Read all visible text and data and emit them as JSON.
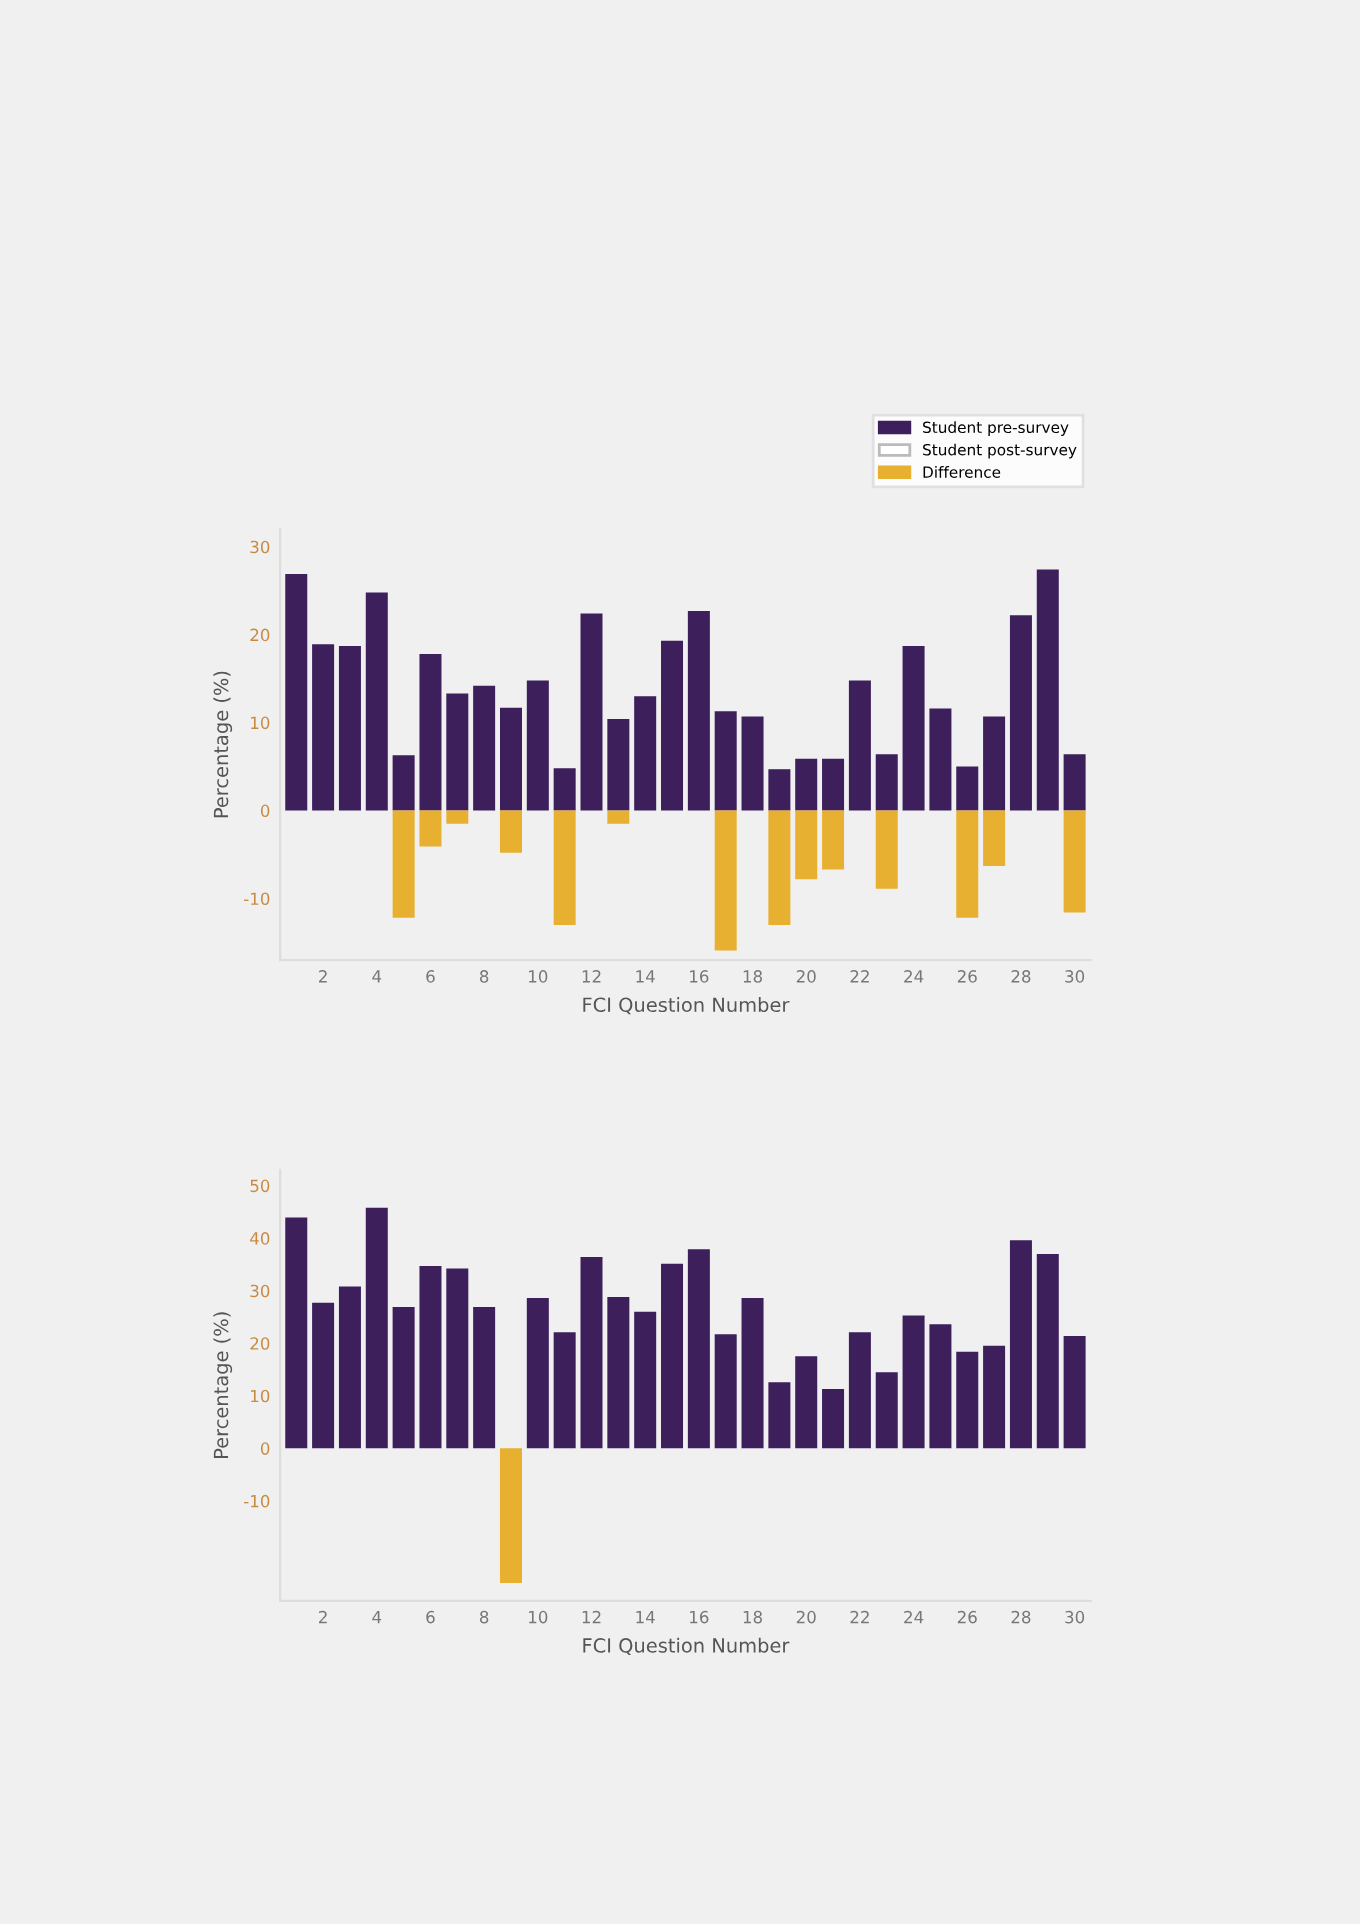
{
  "chart_data": [
    {
      "type": "bar",
      "xlabel": "FCI Question Number",
      "ylabel": "Percentage (%)",
      "categories": [
        null,
        "2",
        null,
        "4",
        null,
        "6",
        null,
        "8",
        null,
        "10",
        null,
        "12",
        null,
        "14",
        null,
        "16",
        null,
        "18",
        null,
        "20",
        null,
        "22",
        null,
        "24",
        null,
        "26",
        null,
        "28",
        null,
        "30"
      ],
      "series": [
        {
          "name": "Student pre-survey",
          "color": "#3d1f5c",
          "values": [
            26.9,
            18.9,
            18.7,
            24.8,
            6.3,
            17.8,
            13.3,
            14.2,
            11.7,
            14.8,
            4.8,
            22.4,
            10.4,
            13.0,
            19.3,
            22.7,
            11.3,
            10.7,
            4.7,
            5.9,
            5.9,
            14.8,
            6.4,
            18.7,
            11.6,
            5.0,
            10.7,
            22.2,
            27.4,
            6.4
          ]
        },
        {
          "name": "Student post-survey",
          "color": "#ffffff",
          "values": [
            null,
            null,
            null,
            null,
            null,
            null,
            null,
            null,
            null,
            null,
            null,
            null,
            null,
            null,
            null,
            null,
            null,
            null,
            null,
            null,
            null,
            null,
            null,
            null,
            null,
            null,
            null,
            null,
            null,
            null
          ]
        },
        {
          "name": "Difference",
          "color": "#e8b030",
          "values": [
            null,
            null,
            null,
            null,
            -12.2,
            -4.1,
            -1.5,
            null,
            -4.8,
            null,
            -13.0,
            null,
            -1.5,
            null,
            null,
            null,
            -15.9,
            null,
            -13.0,
            -7.8,
            -6.7,
            null,
            -8.9,
            null,
            null,
            -12.2,
            -6.3,
            null,
            null,
            -11.6
          ]
        }
      ],
      "ylim": [
        -17,
        32
      ],
      "yticks": [
        -10,
        0,
        10,
        20,
        30
      ],
      "legend": "top right",
      "grid": false
    },
    {
      "type": "bar",
      "xlabel": "FCI Question Number",
      "ylabel": "Percentage (%)",
      "categories": [
        null,
        "2",
        null,
        "4",
        null,
        "6",
        null,
        "8",
        null,
        "10",
        null,
        "12",
        null,
        "14",
        null,
        "16",
        null,
        "18",
        null,
        "20",
        null,
        "22",
        null,
        "24",
        null,
        "26",
        null,
        "28",
        null,
        "30"
      ],
      "series": [
        {
          "color": "#3d1f5c",
          "values": [
            43.9,
            27.7,
            30.8,
            45.8,
            26.9,
            34.7,
            34.2,
            26.9,
            null,
            28.6,
            22.1,
            36.4,
            28.8,
            26.0,
            35.1,
            37.9,
            21.7,
            28.6,
            12.6,
            17.5,
            11.3,
            22.1,
            14.5,
            25.3,
            23.6,
            18.4,
            19.5,
            39.6,
            37.0,
            21.4
          ]
        },
        {
          "color": "#e8b030",
          "values": [
            null,
            null,
            null,
            null,
            null,
            null,
            null,
            null,
            -25.6,
            null,
            null,
            null,
            null,
            null,
            null,
            null,
            null,
            null,
            null,
            null,
            null,
            null,
            null,
            null,
            null,
            null,
            null,
            null,
            null,
            null
          ]
        }
      ],
      "ylim": [
        -29,
        53
      ],
      "yticks": [
        -10,
        0,
        10,
        20,
        30,
        40,
        50
      ],
      "grid": false
    }
  ]
}
